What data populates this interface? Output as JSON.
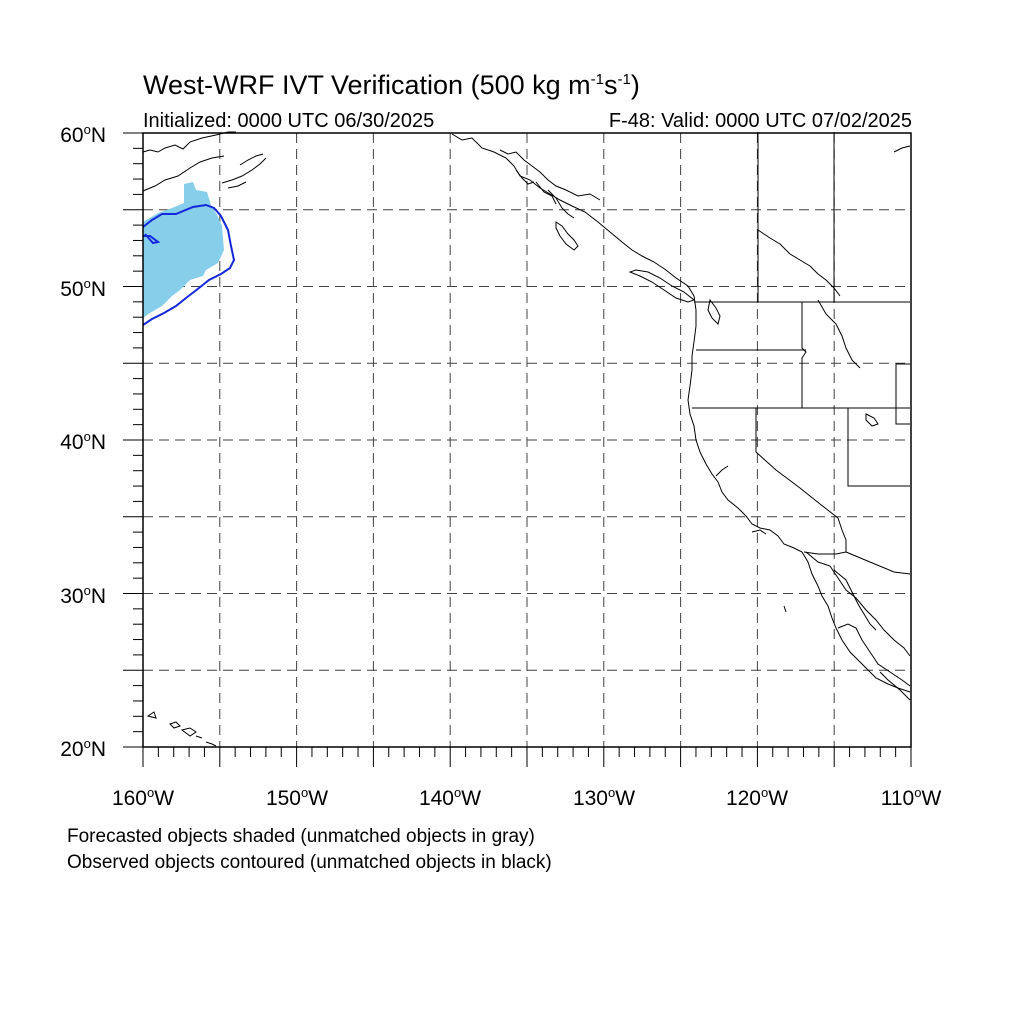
{
  "header": {
    "title_main": "West-WRF IVT Verification (500 kg m",
    "title_exp1": "-1",
    "title_mid": "s",
    "title_exp2": "-1",
    "title_end": ")",
    "initialized": "Initialized: 0000 UTC 06/30/2025",
    "valid": "F-48: Valid: 0000 UTC 07/02/2025"
  },
  "axes": {
    "degree_symbol": "o",
    "lat_labels": [
      {
        "num": "60",
        "hem": "N"
      },
      {
        "num": "50",
        "hem": "N"
      },
      {
        "num": "40",
        "hem": "N"
      },
      {
        "num": "30",
        "hem": "N"
      },
      {
        "num": "20",
        "hem": "N"
      }
    ],
    "lon_labels": [
      {
        "num": "160",
        "hem": "W"
      },
      {
        "num": "150",
        "hem": "W"
      },
      {
        "num": "140",
        "hem": "W"
      },
      {
        "num": "130",
        "hem": "W"
      },
      {
        "num": "120",
        "hem": "W"
      },
      {
        "num": "110",
        "hem": "W"
      }
    ]
  },
  "map": {
    "lat_range": [
      20,
      60
    ],
    "lon_range": [
      -160,
      -110
    ],
    "grid_spacing_deg": 5,
    "grid_style": "dashed",
    "forecast_object_color": "#87ceeb",
    "observed_contour_color": "#1428dc",
    "coast_color": "#000000"
  },
  "captions": {
    "line1": "Forecasted objects shaded (unmatched objects in gray)",
    "line2": "Observed objects contoured (unmatched objects in black)"
  }
}
